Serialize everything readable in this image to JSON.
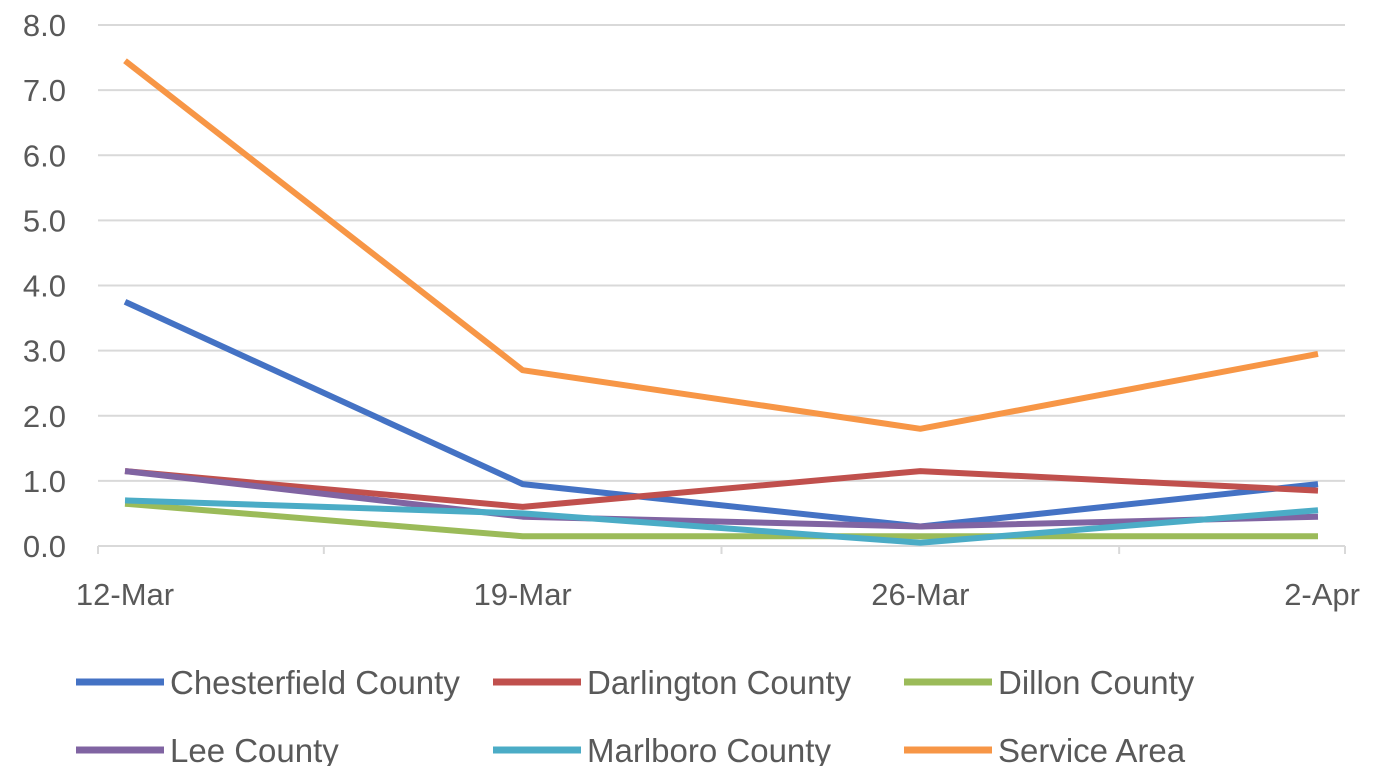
{
  "chart_data": {
    "type": "line",
    "categories": [
      "12-Mar",
      "19-Mar",
      "26-Mar",
      "2-Apr"
    ],
    "ylim": [
      0,
      8
    ],
    "yticks": [
      "0.0",
      "1.0",
      "2.0",
      "3.0",
      "4.0",
      "5.0",
      "6.0",
      "7.0",
      "8.0"
    ],
    "grid": true,
    "legend_position": "bottom",
    "series": [
      {
        "name": "Chesterfield County",
        "color": "#4472c4",
        "values": [
          3.75,
          0.95,
          0.3,
          0.95
        ]
      },
      {
        "name": "Darlington County",
        "color": "#c0504d",
        "values": [
          1.15,
          0.6,
          1.15,
          0.85
        ]
      },
      {
        "name": "Dillon County",
        "color": "#9bbb59",
        "values": [
          0.65,
          0.15,
          0.15,
          0.15
        ]
      },
      {
        "name": "Lee County",
        "color": "#8064a2",
        "values": [
          1.15,
          0.45,
          0.3,
          0.45
        ]
      },
      {
        "name": "Marlboro County",
        "color": "#4bacc6",
        "values": [
          0.7,
          0.5,
          0.05,
          0.55
        ]
      },
      {
        "name": "Service Area",
        "color": "#f79646",
        "values": [
          7.45,
          2.7,
          1.8,
          2.95
        ]
      }
    ]
  }
}
